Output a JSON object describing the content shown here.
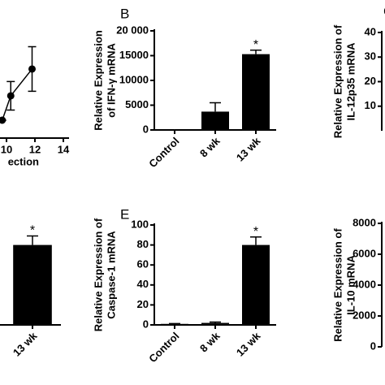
{
  "chart_data": [
    {
      "type": "line",
      "x": [
        9.7,
        10.3,
        11.8
      ],
      "values": [
        14.7,
        34.7,
        56.7
      ],
      "errors": [
        0,
        11.7,
        18.3
      ],
      "xlim": [
        10,
        14
      ],
      "xticks": [
        10,
        12,
        14
      ],
      "ylim": [
        0,
        100
      ],
      "xlabel": "ection",
      "color": "#000000"
    },
    {
      "type": "bar",
      "label": "B",
      "ylabel": [
        "Relative Expression",
        "of IFN-γ mRNA"
      ],
      "categories": [
        "Control",
        "8 wk",
        "13 wk"
      ],
      "values": [
        0,
        3700,
        15300
      ],
      "errors": [
        0,
        1800,
        800
      ],
      "significance": [
        null,
        null,
        "*"
      ],
      "color": "#000000",
      "ylim": [
        0,
        20000
      ],
      "yticks": [
        {
          "value": 20000,
          "label": "20 000"
        },
        15000,
        10000,
        5000,
        0
      ]
    },
    {
      "type": "bar",
      "label": "C",
      "ylabel": [
        "Relative Expression of",
        "IL-12p35 mRNA"
      ],
      "ylim": [
        0,
        40
      ],
      "yticks": [
        40,
        30,
        20,
        10
      ]
    },
    {
      "type": "bar",
      "categories": [
        "13 wk"
      ],
      "values": [
        80
      ],
      "errors": [
        9
      ],
      "significance": [
        "*"
      ],
      "color": "#000000",
      "ylim": [
        0,
        100
      ]
    },
    {
      "type": "bar",
      "label": "E",
      "ylabel": [
        "Relative Expression of",
        "Caspase-1 mRNA"
      ],
      "categories": [
        "Control",
        "8 wk",
        "13 wk"
      ],
      "values": [
        1,
        2,
        80
      ],
      "errors": [
        0.3,
        0.8,
        8
      ],
      "significance": [
        null,
        null,
        "*"
      ],
      "color": "#000000",
      "ylim": [
        0,
        100
      ],
      "yticks": [
        100,
        80,
        60,
        40,
        20,
        0
      ]
    },
    {
      "type": "bar",
      "ylabel": [
        "Relative Expression of",
        "IL-10 mRNA"
      ],
      "ylim": [
        0,
        8000
      ],
      "yticks": [
        8000,
        6000,
        4000,
        2000,
        0
      ]
    }
  ]
}
